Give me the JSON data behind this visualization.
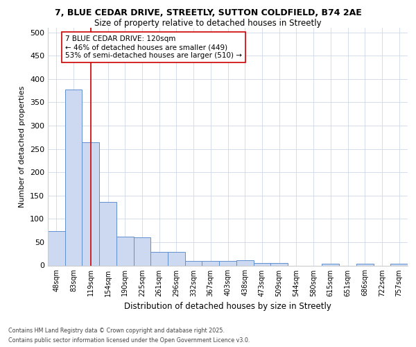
{
  "title_line1": "7, BLUE CEDAR DRIVE, STREETLY, SUTTON COLDFIELD, B74 2AE",
  "title_line2": "Size of property relative to detached houses in Streetly",
  "xlabel": "Distribution of detached houses by size in Streetly",
  "ylabel": "Number of detached properties",
  "bar_labels": [
    "48sqm",
    "83sqm",
    "119sqm",
    "154sqm",
    "190sqm",
    "225sqm",
    "261sqm",
    "296sqm",
    "332sqm",
    "367sqm",
    "403sqm",
    "438sqm",
    "473sqm",
    "509sqm",
    "544sqm",
    "580sqm",
    "615sqm",
    "651sqm",
    "686sqm",
    "722sqm",
    "757sqm"
  ],
  "bar_values": [
    73,
    378,
    265,
    136,
    62,
    60,
    29,
    29,
    9,
    9,
    9,
    11,
    5,
    5,
    0,
    0,
    3,
    0,
    3,
    0,
    3
  ],
  "bar_color": "#ccd9f0",
  "bar_edge_color": "#6090d0",
  "annotation_text": "7 BLUE CEDAR DRIVE: 120sqm\n← 46% of detached houses are smaller (449)\n53% of semi-detached houses are larger (510) →",
  "vline_x": 2.0,
  "vline_color": "#cc0000",
  "annotation_box_color": "#ffffff",
  "annotation_box_edge": "#cc0000",
  "ylim": [
    0,
    510
  ],
  "yticks": [
    0,
    50,
    100,
    150,
    200,
    250,
    300,
    350,
    400,
    450,
    500
  ],
  "footer_line1": "Contains HM Land Registry data © Crown copyright and database right 2025.",
  "footer_line2": "Contains public sector information licensed under the Open Government Licence v3.0.",
  "background_color": "#ffffff",
  "grid_color": "#d0d8e8"
}
